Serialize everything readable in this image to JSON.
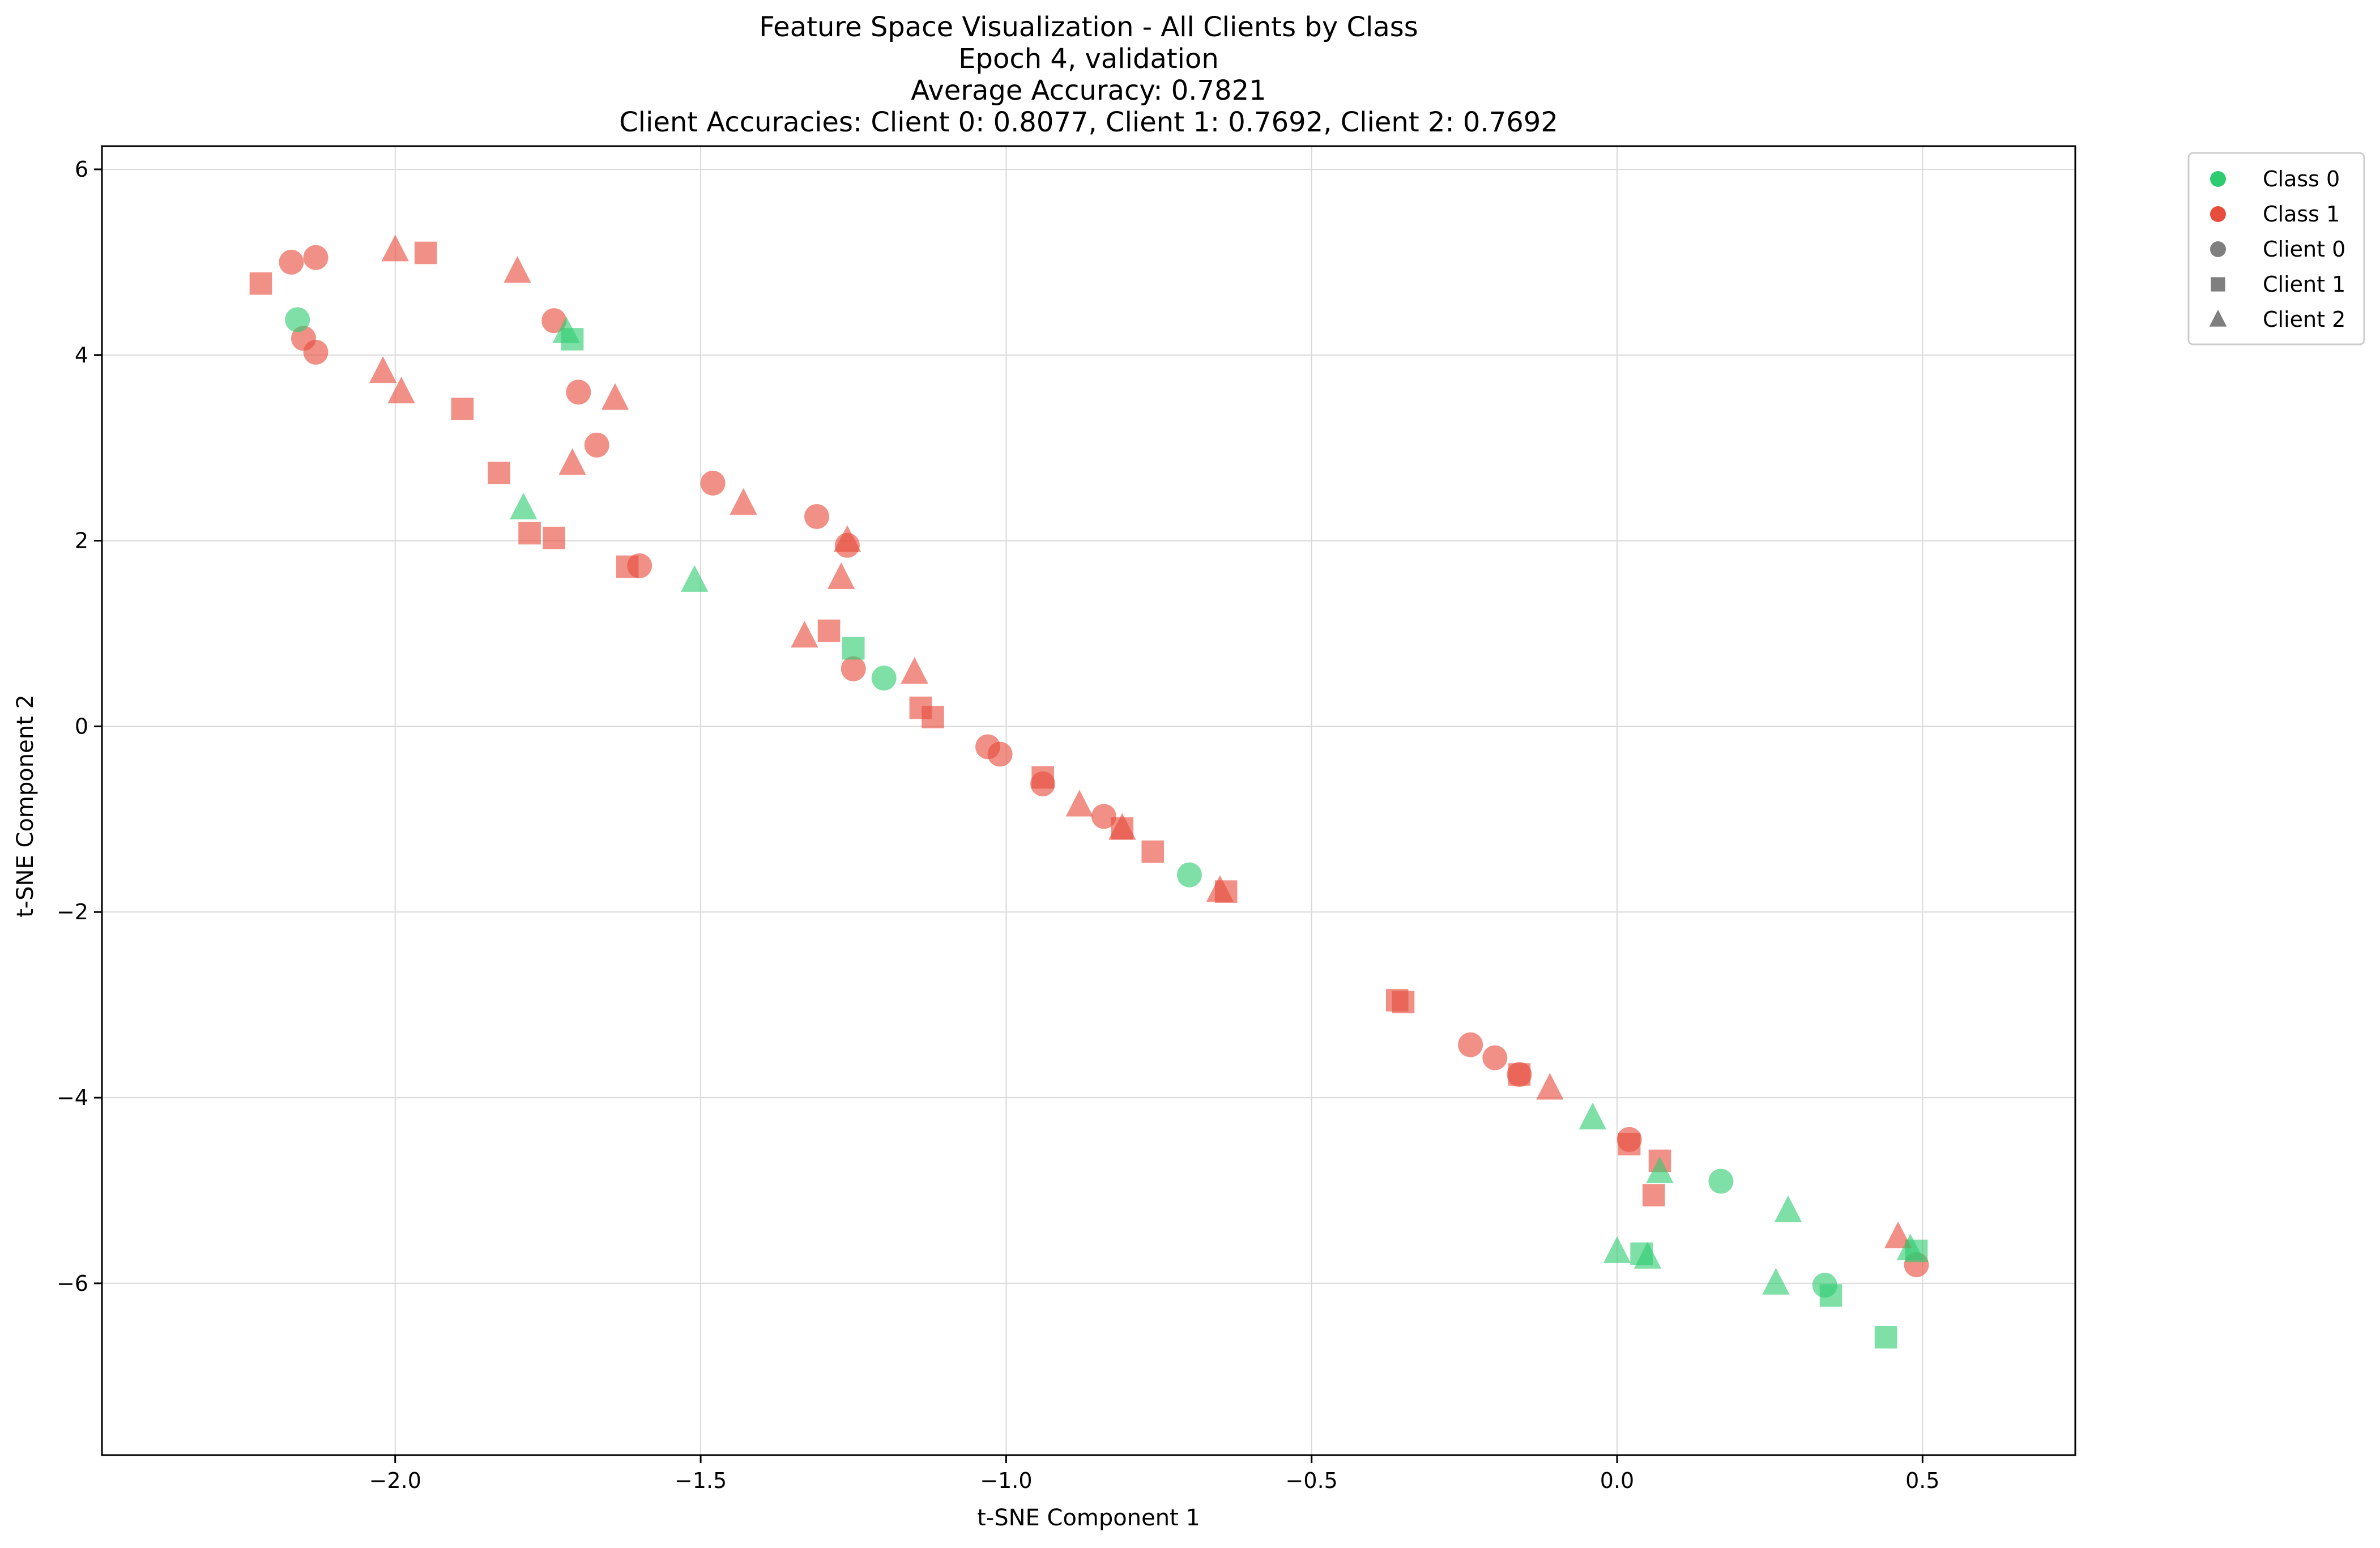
{
  "chart_data": {
    "type": "scatter",
    "title_lines": [
      "Feature Space Visualization - All Clients by Class",
      "Epoch 4, validation",
      "Average Accuracy: 0.7821",
      "Client Accuracies: Client 0: 0.8077, Client 1: 0.7692, Client 2: 0.7692"
    ],
    "xlabel": "t-SNE Component 1",
    "ylabel": "t-SNE Component 2",
    "xlim": [
      -2.48,
      0.75
    ],
    "ylim": [
      -7.85,
      6.25
    ],
    "xticks": [
      -2.0,
      -1.5,
      -1.0,
      -0.5,
      0.0,
      0.5
    ],
    "xtick_labels": [
      "−2.0",
      "−1.5",
      "−1.0",
      "−0.5",
      "0.0",
      "0.5"
    ],
    "yticks": [
      6,
      4,
      2,
      0,
      -2,
      -4,
      -6
    ],
    "ytick_labels": [
      "6",
      "4",
      "2",
      "0",
      "−2",
      "−4",
      "−6"
    ],
    "grid": true,
    "legend_position": "outside top-right",
    "colors": {
      "Class 0": "#2ecc71",
      "Class 1": "#e74c3c",
      "marker_key": "#7f7f7f"
    },
    "legend": [
      {
        "label": "Class 0",
        "marker": "circle",
        "color": "#2ecc71"
      },
      {
        "label": "Class 1",
        "marker": "circle",
        "color": "#e74c3c"
      },
      {
        "label": "Client 0",
        "marker": "circle",
        "color": "#7f7f7f"
      },
      {
        "label": "Client 1",
        "marker": "square",
        "color": "#7f7f7f"
      },
      {
        "label": "Client 2",
        "marker": "triangle",
        "color": "#7f7f7f"
      }
    ],
    "series": [
      {
        "client": "Client 0",
        "class": "Class 1",
        "marker": "circle",
        "points": [
          [
            -2.17,
            5.0
          ],
          [
            -2.13,
            5.05
          ],
          [
            -2.15,
            4.18
          ],
          [
            -2.13,
            4.03
          ],
          [
            -1.74,
            4.37
          ],
          [
            -1.7,
            3.6
          ],
          [
            -1.67,
            3.03
          ],
          [
            -1.6,
            1.73
          ],
          [
            -1.48,
            2.62
          ],
          [
            -1.31,
            2.26
          ],
          [
            -1.26,
            1.95
          ],
          [
            -1.25,
            0.62
          ],
          [
            -1.03,
            -0.22
          ],
          [
            -1.01,
            -0.3
          ],
          [
            -0.94,
            -0.62
          ],
          [
            -0.84,
            -0.97
          ],
          [
            -0.24,
            -3.43
          ],
          [
            -0.2,
            -3.57
          ],
          [
            -0.16,
            -3.75
          ],
          [
            0.02,
            -4.45
          ],
          [
            0.49,
            -5.8
          ]
        ]
      },
      {
        "client": "Client 0",
        "class": "Class 0",
        "marker": "circle",
        "points": [
          [
            -2.16,
            4.38
          ],
          [
            -1.2,
            0.52
          ],
          [
            -0.7,
            -1.6
          ],
          [
            0.17,
            -4.9
          ],
          [
            0.34,
            -6.02
          ]
        ]
      },
      {
        "client": "Client 1",
        "class": "Class 1",
        "marker": "square",
        "points": [
          [
            -2.22,
            4.77
          ],
          [
            -1.95,
            5.1
          ],
          [
            -1.89,
            3.42
          ],
          [
            -1.83,
            2.73
          ],
          [
            -1.78,
            2.08
          ],
          [
            -1.74,
            2.03
          ],
          [
            -1.62,
            1.72
          ],
          [
            -1.29,
            1.03
          ],
          [
            -1.14,
            0.2
          ],
          [
            -1.12,
            0.1
          ],
          [
            -0.94,
            -0.55
          ],
          [
            -0.81,
            -1.1
          ],
          [
            -0.76,
            -1.35
          ],
          [
            -0.64,
            -1.78
          ],
          [
            -0.36,
            -2.95
          ],
          [
            -0.35,
            -2.97
          ],
          [
            -0.16,
            -3.75
          ],
          [
            0.02,
            -4.5
          ],
          [
            0.06,
            -5.05
          ],
          [
            0.07,
            -4.68
          ]
        ]
      },
      {
        "client": "Client 1",
        "class": "Class 0",
        "marker": "square",
        "points": [
          [
            -1.71,
            4.17
          ],
          [
            -1.25,
            0.84
          ],
          [
            0.04,
            -5.68
          ],
          [
            0.35,
            -6.13
          ],
          [
            0.44,
            -6.58
          ],
          [
            0.49,
            -5.65
          ]
        ]
      },
      {
        "client": "Client 2",
        "class": "Class 1",
        "marker": "triangle",
        "points": [
          [
            -2.0,
            5.13
          ],
          [
            -1.8,
            4.9
          ],
          [
            -2.02,
            3.82
          ],
          [
            -1.99,
            3.6
          ],
          [
            -1.71,
            2.83
          ],
          [
            -1.64,
            3.53
          ],
          [
            -1.43,
            2.4
          ],
          [
            -1.26,
            2.0
          ],
          [
            -1.27,
            1.6
          ],
          [
            -1.33,
            0.97
          ],
          [
            -1.15,
            0.58
          ],
          [
            -0.88,
            -0.85
          ],
          [
            -0.81,
            -1.1
          ],
          [
            -0.65,
            -1.77
          ],
          [
            -0.11,
            -3.9
          ],
          [
            0.46,
            -5.5
          ]
        ]
      },
      {
        "client": "Client 2",
        "class": "Class 0",
        "marker": "triangle",
        "points": [
          [
            -1.72,
            4.25
          ],
          [
            -1.79,
            2.35
          ],
          [
            -1.51,
            1.57
          ],
          [
            -0.04,
            -4.22
          ],
          [
            0.0,
            -5.66
          ],
          [
            0.05,
            -5.72
          ],
          [
            0.07,
            -4.8
          ],
          [
            0.26,
            -6.0
          ],
          [
            0.28,
            -5.22
          ],
          [
            0.48,
            -5.63
          ]
        ]
      }
    ]
  }
}
